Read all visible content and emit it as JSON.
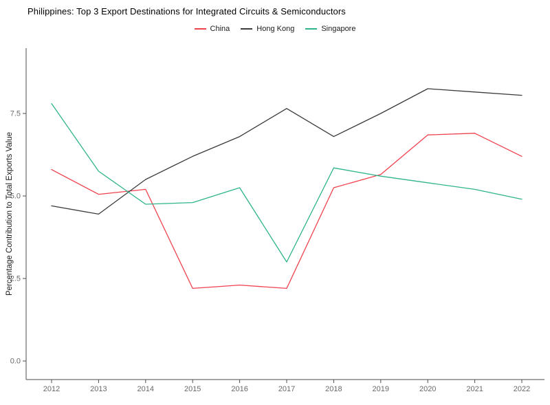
{
  "chart_data": {
    "type": "line",
    "title": "Philippines: Top 3 Export Destinations for Integrated Circuits & Semiconductors",
    "xlabel": "",
    "ylabel": "Percentage Contribution to Total Exports Value",
    "categories": [
      "2012",
      "2013",
      "2014",
      "2015",
      "2016",
      "2017",
      "2018",
      "2019",
      "2020",
      "2021",
      "2022"
    ],
    "series": [
      {
        "name": "China",
        "color": "#f0404c",
        "values": [
          5.8,
          5.05,
          5.2,
          2.2,
          2.3,
          2.2,
          5.25,
          5.65,
          6.85,
          6.9,
          6.2
        ]
      },
      {
        "name": "Hong Kong",
        "color": "#3a3a3a",
        "values": [
          4.7,
          4.45,
          5.5,
          6.2,
          6.8,
          7.65,
          6.8,
          7.5,
          8.25,
          8.15,
          8.05
        ]
      },
      {
        "name": "Singapore",
        "color": "#2db48c",
        "values": [
          7.8,
          5.75,
          4.75,
          4.8,
          5.25,
          3.0,
          5.85,
          5.6,
          5.4,
          5.2,
          4.9
        ]
      }
    ],
    "y_ticks": [
      0.0,
      2.5,
      5.0,
      7.5
    ],
    "y_tick_labels": [
      "0.0",
      "2.5",
      "5.0",
      "7.5"
    ],
    "ylim": [
      -0.55,
      9.4
    ],
    "grid": "off",
    "legend_position": "top-center",
    "axis_color": "#4d4d4d",
    "tick_label_color": "#696969"
  }
}
